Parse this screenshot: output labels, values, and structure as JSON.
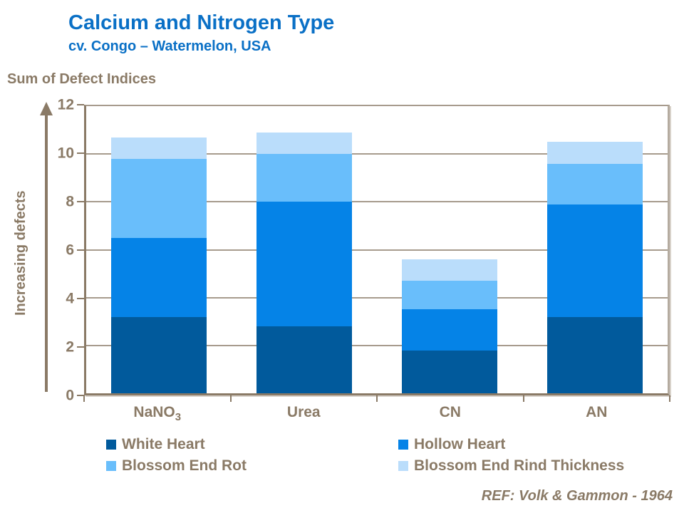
{
  "header": {
    "title": "Calcium and Nitrogen Type",
    "subtitle": "cv. Congo – Watermelon, USA"
  },
  "axis_title": "Sum of Defect Indices",
  "y_direction_label": "Increasing defects",
  "reference": "REF: Volk & Gammon - 1964",
  "colors": {
    "title_blue": "#0a70c6",
    "text_brown": "#8a7a66",
    "axis_brown": "#8a7a66",
    "gridline": "#a79b8d",
    "plot_border_right": "#b4ab9f",
    "background": "#ffffff"
  },
  "chart_data": {
    "type": "bar",
    "stacked": true,
    "title": "Calcium and Nitrogen Type",
    "subtitle": "cv. Congo – Watermelon, USA",
    "xlabel": "",
    "ylabel": "Sum of Defect Indices",
    "y_direction_annotation": "Increasing defects",
    "categories": [
      "NaNO₃",
      "Urea",
      "CN",
      "AN"
    ],
    "series": [
      {
        "name": "White Heart",
        "color": "#015a9c",
        "values": [
          3.2,
          2.8,
          1.8,
          3.2
        ]
      },
      {
        "name": "Hollow Heart",
        "color": "#0583e7",
        "values": [
          3.3,
          5.2,
          1.7,
          4.7
        ]
      },
      {
        "name": "Blossom End Rot",
        "color": "#69befb",
        "values": [
          3.3,
          2.0,
          1.2,
          1.7
        ]
      },
      {
        "name": "Blossom End Rind Thickness",
        "color": "#baddfb",
        "values": [
          0.9,
          0.9,
          0.9,
          0.9
        ]
      }
    ],
    "totals": [
      10.7,
      10.9,
      5.6,
      10.5
    ],
    "ylim": [
      0,
      12
    ],
    "yticks": [
      0,
      2,
      4,
      6,
      8,
      10,
      12
    ],
    "grid": true,
    "legend_position": "bottom"
  }
}
